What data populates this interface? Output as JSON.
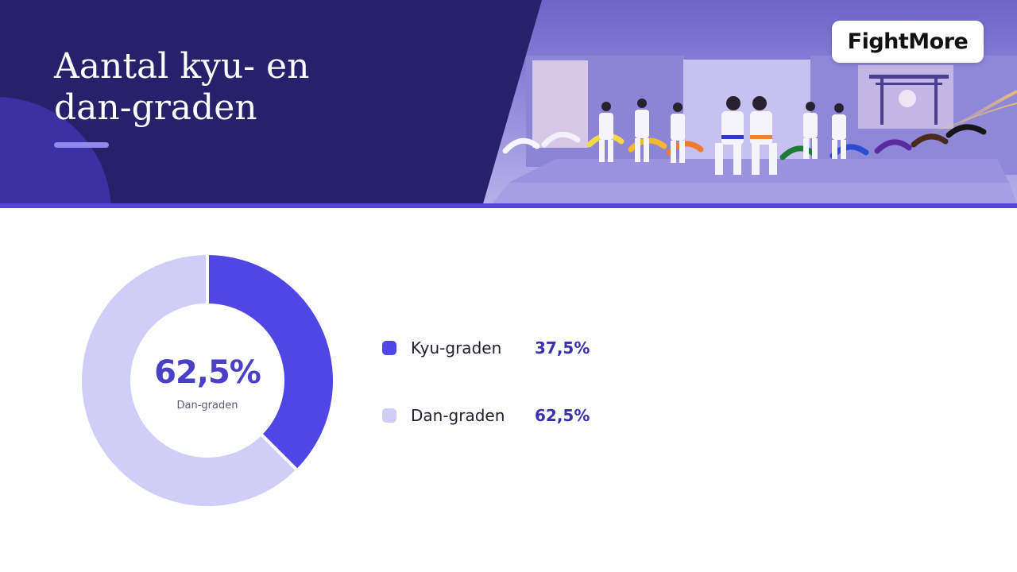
{
  "header": {
    "title_lines": [
      "Aantal kyu- en",
      "dan-graden"
    ],
    "logo": "FightMore"
  },
  "colors": {
    "banner": "#27216b",
    "accent": "#5145e0",
    "kyu": "#4f46e5",
    "dan": "#d0cdf6",
    "value_text": "#3a30b0"
  },
  "chart_data": {
    "type": "pie",
    "style": "donut",
    "categories": [
      "Kyu-graden",
      "Dan-graden"
    ],
    "values": [
      37.5,
      62.5
    ],
    "value_labels": [
      "37,5%",
      "62,5%"
    ],
    "colors": [
      "#4f46e5",
      "#d0cdf6"
    ],
    "center": {
      "value": "62,5%",
      "label": "Dan-graden"
    },
    "legend": "right"
  }
}
